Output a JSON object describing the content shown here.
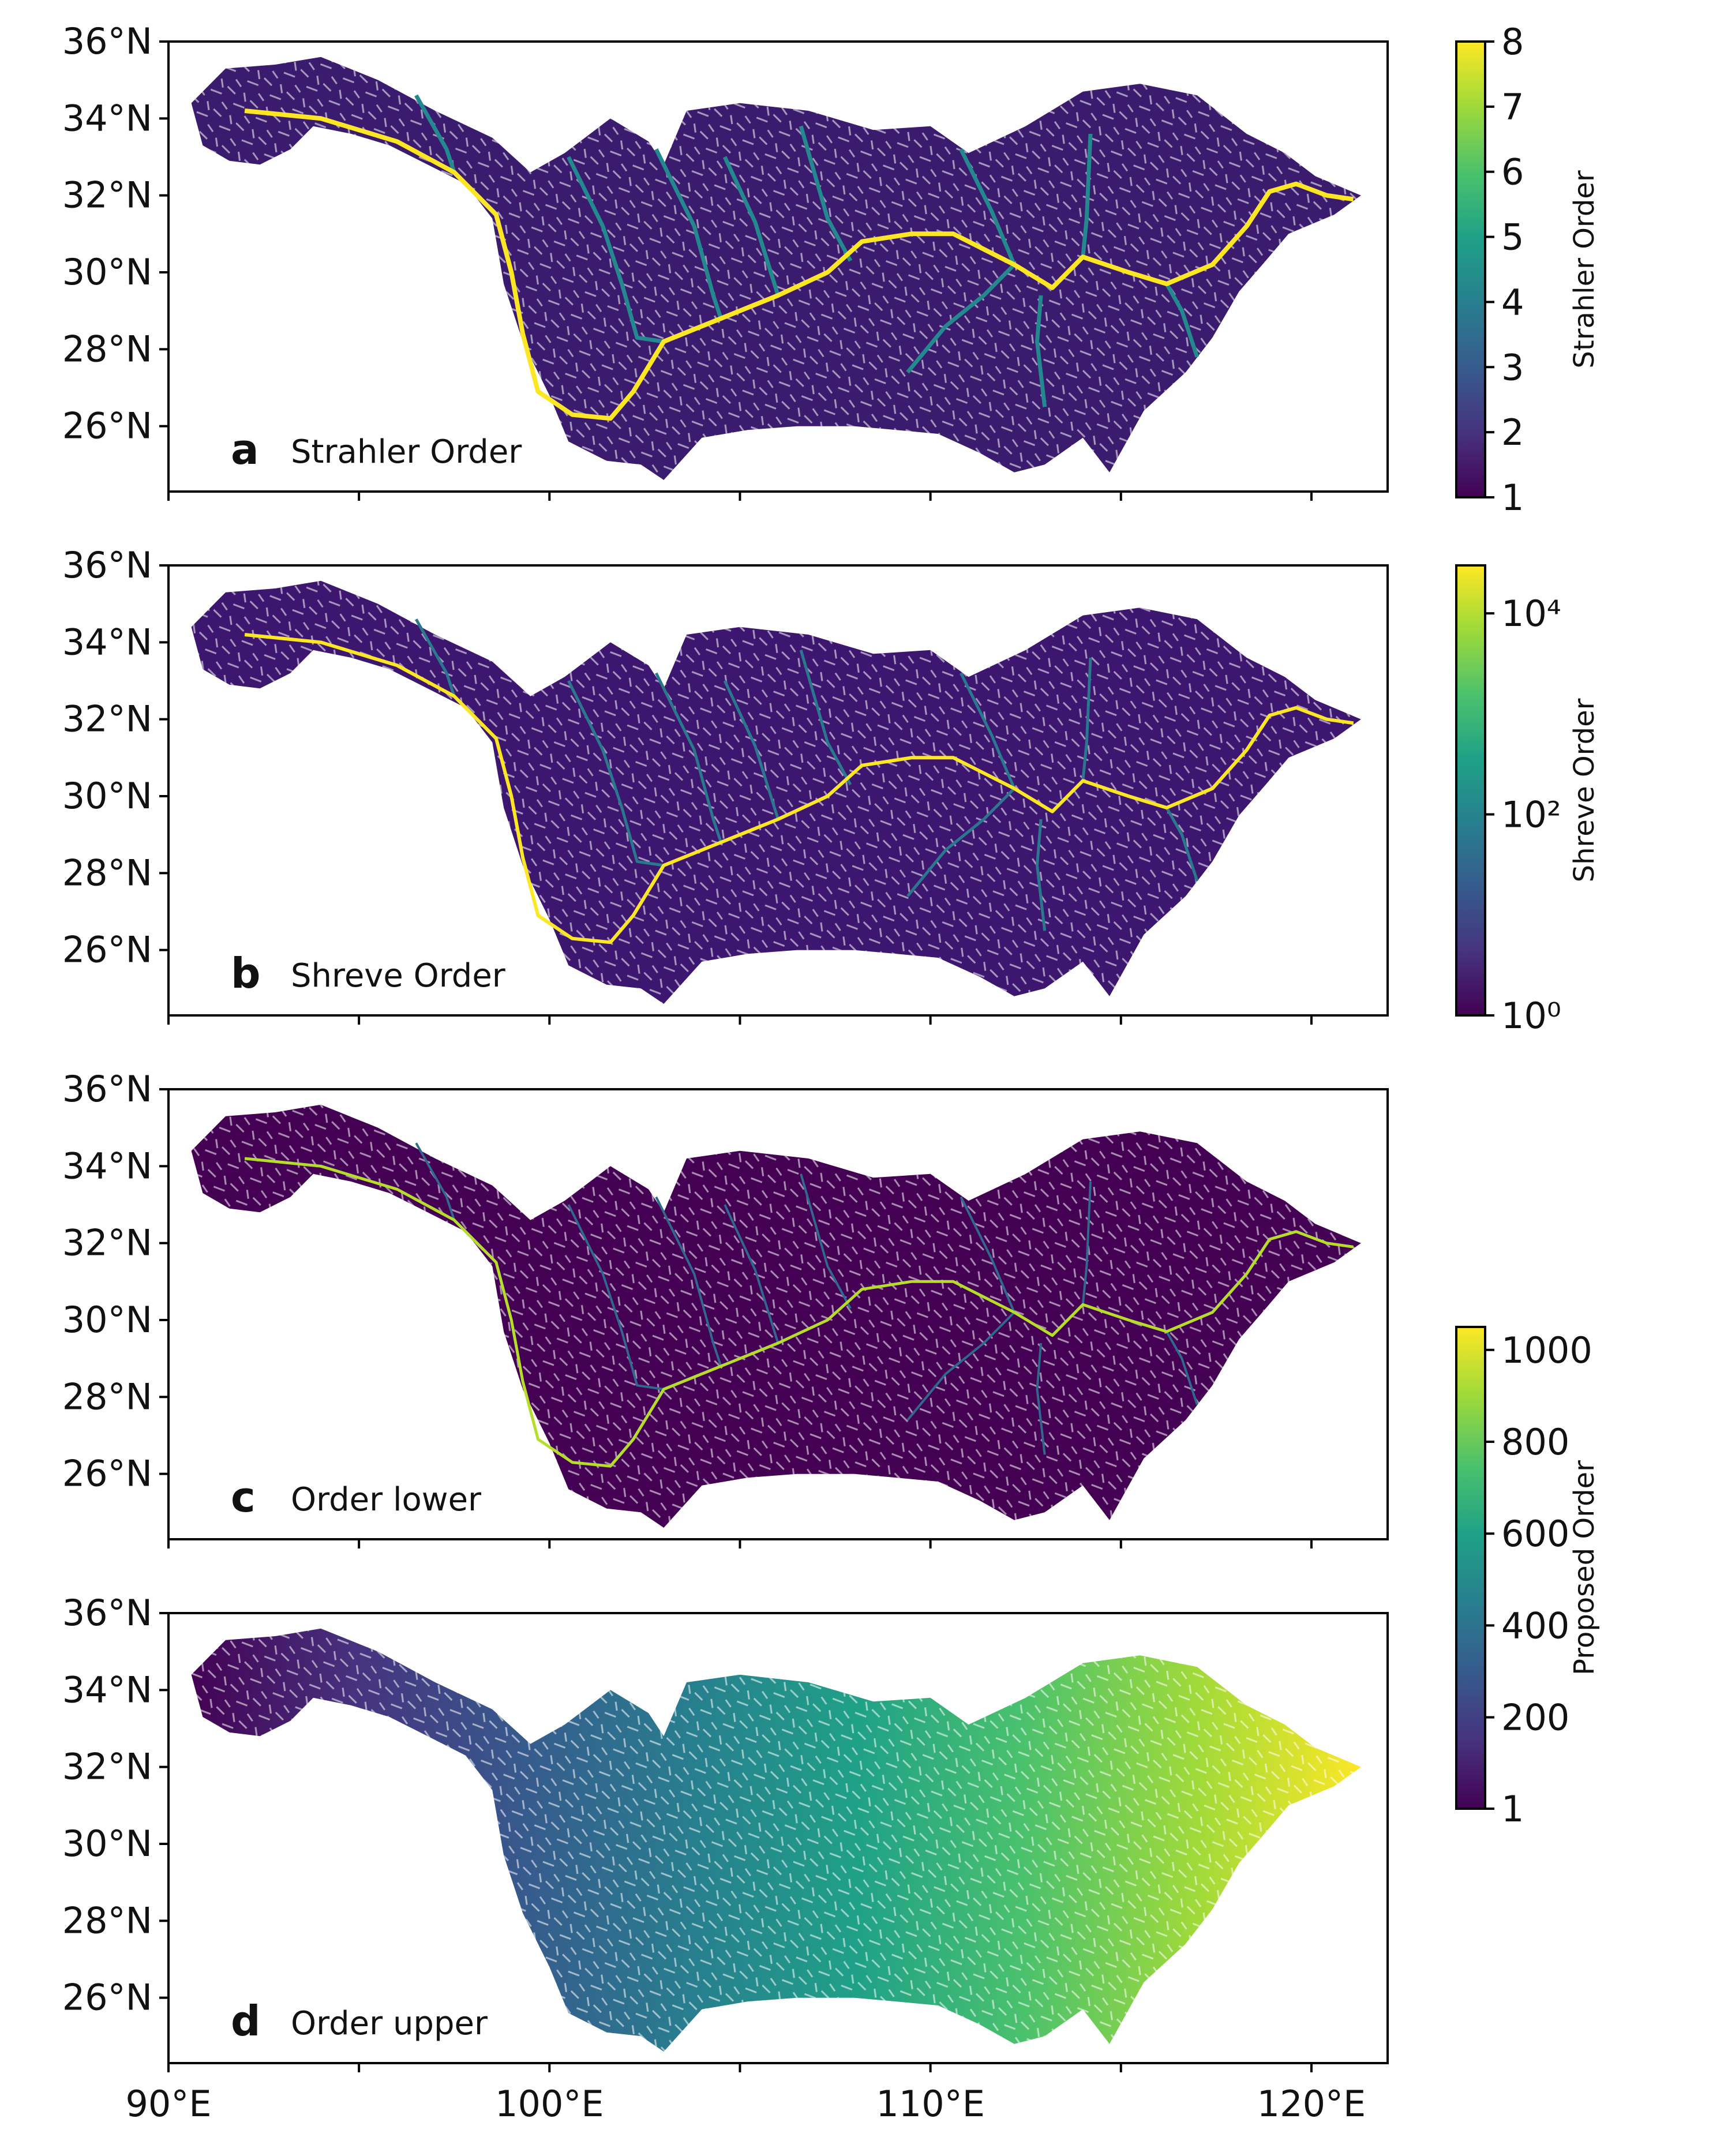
{
  "chart_data": [
    {
      "type": "map",
      "panel_letter": "a",
      "panel_label": "Strahler Order",
      "colorbar": {
        "label": "Strahler Order",
        "scale": "linear",
        "range": [
          1,
          8
        ],
        "ticks": [
          "1",
          "2",
          "3",
          "4",
          "5",
          "6",
          "7",
          "8"
        ]
      }
    },
    {
      "type": "map",
      "panel_letter": "b",
      "panel_label": "Shreve Order",
      "colorbar": {
        "label": "Shreve Order",
        "scale": "log",
        "range": [
          1,
          30000
        ],
        "ticks": [
          "10⁰",
          "10²",
          "10⁴"
        ]
      }
    },
    {
      "type": "map",
      "panel_letter": "c",
      "panel_label": "Order lower"
    },
    {
      "type": "map",
      "panel_letter": "d",
      "panel_label": "Order upper",
      "colorbar": {
        "label": "Proposed Order",
        "scale": "linear",
        "range": [
          1,
          1050
        ],
        "ticks": [
          "1",
          "200",
          "400",
          "600",
          "800",
          "1000"
        ],
        "shared_by": [
          "c",
          "d"
        ]
      }
    }
  ],
  "axes": {
    "y_ticks": [
      "36°N",
      "34°N",
      "32°N",
      "30°N",
      "28°N",
      "26°N"
    ],
    "x_ticks": [
      "90°E",
      "100°E",
      "110°E",
      "120°E"
    ],
    "lon_range": [
      90,
      122
    ],
    "lat_range": [
      24.3,
      36
    ]
  },
  "colormap": "viridis",
  "colors": {
    "viridis_low": "#440154",
    "viridis_mid": "#21918c",
    "viridis_high": "#fde725"
  }
}
